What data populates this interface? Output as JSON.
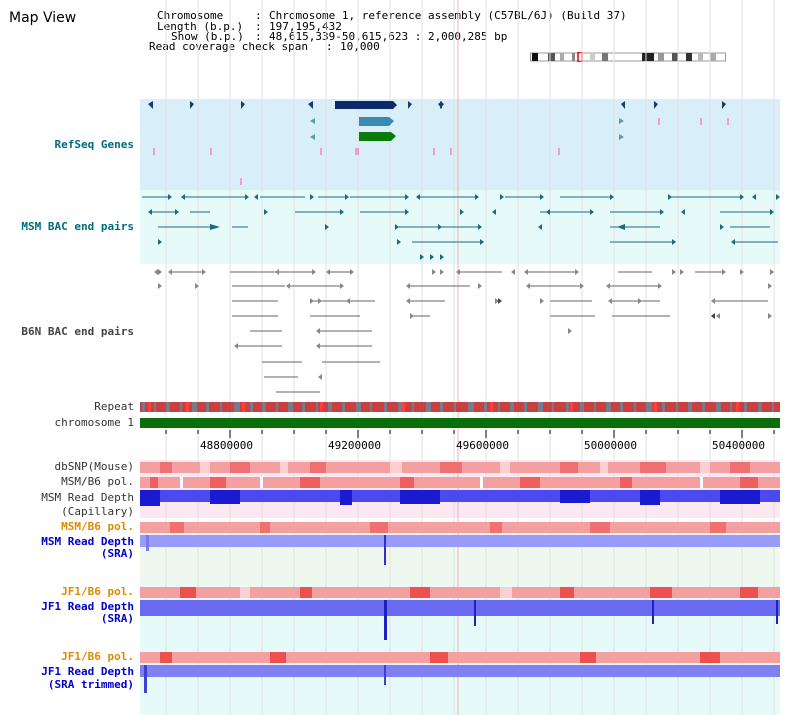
{
  "title": "Map View",
  "info": {
    "chromosome_label": "Chromosome",
    "chromosome_value": "Chromosome 1, reference assembly (C57BL/6J) (Build 37)",
    "length_label": "Length (b.p.)",
    "length_value": "197,195,432",
    "show_label": "Show (b.p.)",
    "show_value": "48,615,339-50,615,623 : 2,000,285 bp",
    "coverage_label": "Read coverage check span",
    "coverage_value": "10,000"
  },
  "tracks": {
    "refseq": "RefSeq Genes",
    "msm_bac": "MSM BAC end pairs",
    "b6n_bac": "B6N BAC end pairs",
    "repeat": "Repeat",
    "chromosome": "chromosome 1",
    "dbsnp": "dbSNP(Mouse)",
    "msm_b6_pol_1": "MSM/B6 pol.",
    "msm_read_depth_cap_1": "MSM Read Depth",
    "msm_read_depth_cap_2": "(Capillary)",
    "msm_b6_pol_2": "MSM/B6 pol.",
    "msm_read_depth_sra_1": "MSM Read Depth",
    "msm_read_depth_sra_2": "(SRA)",
    "jf1_b6_pol_1": "JF1/B6 pol.",
    "jf1_read_depth_sra_1": "JF1 Read Depth",
    "jf1_read_depth_sra_2": "(SRA)",
    "jf1_b6_pol_2": "JF1/B6 pol.",
    "jf1_read_depth_trim_1": "JF1 Read Depth",
    "jf1_read_depth_trim_2": "(SRA trimmed)"
  },
  "axis": {
    "ticks": [
      "48800000",
      "49200000",
      "49600000",
      "50000000",
      "50400000"
    ]
  },
  "colors": {
    "refseq_bg": "#d8effa",
    "msm_bac_bg": "#e6fafa",
    "msm_sra_bg": "#eef8ee",
    "jf1_bg": "#e6fafa",
    "chromosome": "#0a6e0a",
    "teal": "#006b7f",
    "navy": "#0000cc",
    "orange": "#e08a00"
  }
}
